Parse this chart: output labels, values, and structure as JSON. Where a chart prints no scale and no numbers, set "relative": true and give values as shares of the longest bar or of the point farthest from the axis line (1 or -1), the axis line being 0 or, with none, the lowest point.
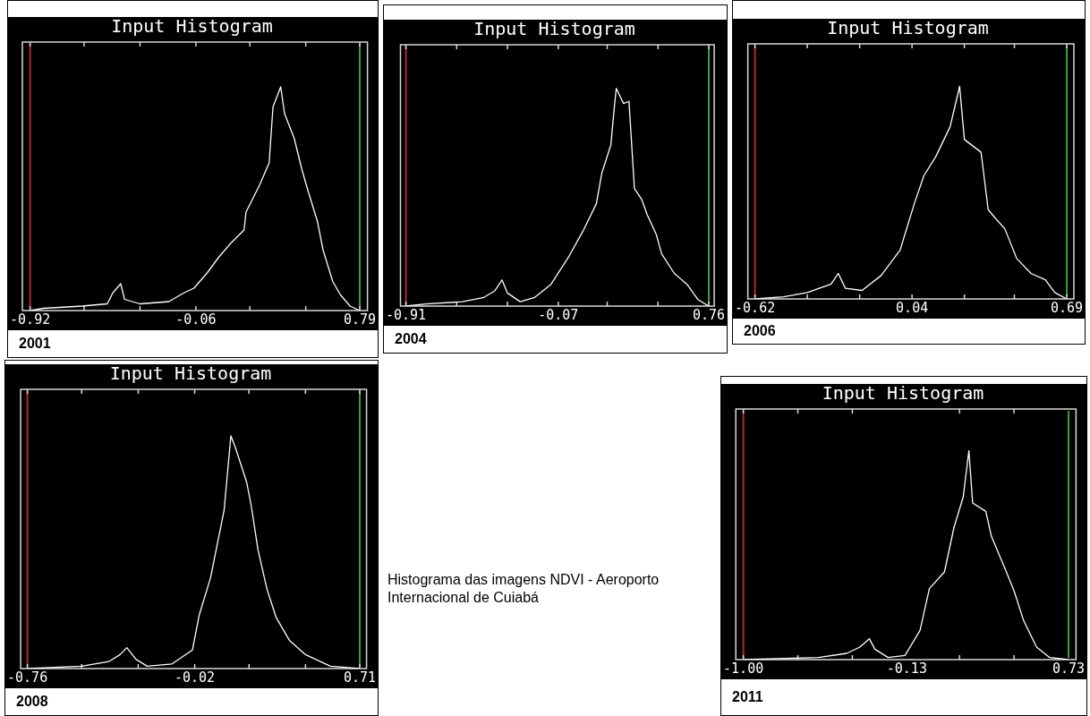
{
  "chart_data": [
    {
      "type": "line",
      "title": "Input Histogram",
      "relative": true,
      "marker": "none",
      "line_style": "solid",
      "color": "#ffffff",
      "x": [
        -0.92,
        -0.85,
        -0.65,
        -0.52,
        -0.49,
        -0.45,
        -0.43,
        -0.35,
        -0.2,
        -0.12,
        -0.07,
        0.0,
        0.06,
        0.12,
        0.19,
        0.2,
        0.27,
        0.32,
        0.34,
        0.38,
        0.4,
        0.45,
        0.49,
        0.52,
        0.57,
        0.6,
        0.65,
        0.69,
        0.74,
        0.79
      ],
      "values": [
        0,
        0.01,
        0.02,
        0.03,
        0.08,
        0.12,
        0.05,
        0.03,
        0.04,
        0.08,
        0.1,
        0.17,
        0.24,
        0.3,
        0.36,
        0.44,
        0.56,
        0.66,
        0.91,
        1.0,
        0.88,
        0.77,
        0.63,
        0.54,
        0.4,
        0.27,
        0.13,
        0.07,
        0.02,
        0
      ],
      "xlim": [
        -0.96,
        0.83
      ],
      "xticks": [
        -0.92,
        {
          "value": -0.64,
          "label": null
        },
        {
          "value": -0.35,
          "label": null
        },
        -0.06,
        {
          "value": 0.22,
          "label": null
        },
        {
          "value": 0.51,
          "label": null
        },
        0.79
      ],
      "ref_lines": [
        {
          "axis": "x",
          "value": -0.92,
          "color": "#b02a2a"
        },
        {
          "axis": "x",
          "value": 0.79,
          "color": "#3aa03a"
        }
      ],
      "annotations": [
        "2001"
      ]
    },
    {
      "type": "line",
      "title": "Input Histogram",
      "relative": true,
      "marker": "none",
      "line_style": "solid",
      "color": "#ffffff",
      "x": [
        -0.91,
        -0.8,
        -0.6,
        -0.48,
        -0.42,
        -0.38,
        -0.35,
        -0.28,
        -0.2,
        -0.11,
        -0.01,
        0.07,
        0.14,
        0.17,
        0.22,
        0.24,
        0.25,
        0.29,
        0.32,
        0.35,
        0.39,
        0.42,
        0.47,
        0.5,
        0.57,
        0.64,
        0.7,
        0.76
      ],
      "values": [
        0,
        0.01,
        0.02,
        0.04,
        0.07,
        0.12,
        0.06,
        0.02,
        0.04,
        0.1,
        0.23,
        0.35,
        0.47,
        0.61,
        0.74,
        0.92,
        1.0,
        0.93,
        0.94,
        0.54,
        0.49,
        0.42,
        0.33,
        0.24,
        0.15,
        0.1,
        0.03,
        0
      ],
      "xlim": [
        -0.94,
        0.79
      ],
      "xticks": [
        -0.91,
        {
          "value": -0.63,
          "label": null
        },
        {
          "value": -0.35,
          "label": null
        },
        -0.07,
        {
          "value": 0.2,
          "label": null
        },
        {
          "value": 0.48,
          "label": null
        },
        0.76
      ],
      "ref_lines": [
        {
          "axis": "x",
          "value": -0.91,
          "color": "#b02a2a"
        },
        {
          "axis": "x",
          "value": 0.76,
          "color": "#3aa03a"
        }
      ],
      "annotations": [
        "2004"
      ]
    },
    {
      "type": "line",
      "title": "Input Histogram",
      "relative": true,
      "marker": "none",
      "line_style": "solid",
      "color": "#ffffff",
      "x": [
        -0.62,
        -0.5,
        -0.4,
        -0.3,
        -0.27,
        -0.24,
        -0.17,
        -0.09,
        -0.01,
        0.05,
        0.09,
        0.14,
        0.2,
        0.24,
        0.26,
        0.33,
        0.36,
        0.39,
        0.43,
        0.48,
        0.54,
        0.6,
        0.64,
        0.69
      ],
      "values": [
        0,
        0.01,
        0.03,
        0.07,
        0.12,
        0.05,
        0.04,
        0.11,
        0.23,
        0.45,
        0.58,
        0.67,
        0.81,
        1.0,
        0.75,
        0.69,
        0.42,
        0.38,
        0.33,
        0.19,
        0.12,
        0.09,
        0.03,
        0
      ],
      "xlim": [
        -0.65,
        0.72
      ],
      "xticks": [
        -0.62,
        {
          "value": -0.4,
          "label": null
        },
        {
          "value": -0.18,
          "label": null
        },
        0.04,
        {
          "value": 0.26,
          "label": null
        },
        {
          "value": 0.47,
          "label": null
        },
        0.69
      ],
      "ref_lines": [
        {
          "axis": "x",
          "value": -0.62,
          "color": "#b02a2a"
        },
        {
          "axis": "x",
          "value": 0.69,
          "color": "#3aa03a"
        }
      ],
      "annotations": [
        "2006"
      ]
    },
    {
      "type": "line",
      "title": "Input Histogram",
      "relative": true,
      "marker": "none",
      "line_style": "solid",
      "color": "#ffffff",
      "x": [
        -0.76,
        -0.52,
        -0.4,
        -0.35,
        -0.32,
        -0.28,
        -0.23,
        -0.12,
        -0.03,
        0.0,
        0.05,
        0.11,
        0.14,
        0.16,
        0.21,
        0.23,
        0.26,
        0.3,
        0.34,
        0.4,
        0.47,
        0.58,
        0.71
      ],
      "values": [
        0,
        0.01,
        0.03,
        0.06,
        0.09,
        0.04,
        0.01,
        0.02,
        0.08,
        0.23,
        0.39,
        0.68,
        1.0,
        0.95,
        0.8,
        0.7,
        0.51,
        0.34,
        0.22,
        0.12,
        0.06,
        0.01,
        0
      ],
      "xlim": [
        -0.79,
        0.74
      ],
      "xticks": [
        -0.76,
        {
          "value": -0.52,
          "label": null
        },
        {
          "value": -0.27,
          "label": null
        },
        -0.02,
        {
          "value": 0.22,
          "label": null
        },
        {
          "value": 0.47,
          "label": null
        },
        0.71
      ],
      "ref_lines": [
        {
          "axis": "x",
          "value": -0.76,
          "color": "#b02a2a"
        },
        {
          "axis": "x",
          "value": 0.71,
          "color": "#3aa03a"
        }
      ],
      "annotations": [
        "2008"
      ]
    },
    {
      "type": "other",
      "title": "Histograma das imagens NDVI - Aeroporto Internacional de Cuiabá"
    },
    {
      "type": "line",
      "title": "Input Histogram",
      "relative": true,
      "marker": "none",
      "line_style": "solid",
      "color": "#ffffff",
      "x": [
        -1.0,
        -0.6,
        -0.45,
        -0.38,
        -0.33,
        -0.3,
        -0.23,
        -0.14,
        -0.06,
        -0.01,
        0.07,
        0.12,
        0.17,
        0.2,
        0.22,
        0.29,
        0.32,
        0.39,
        0.44,
        0.49,
        0.56,
        0.63,
        0.73
      ],
      "values": [
        0,
        0.01,
        0.03,
        0.06,
        0.1,
        0.05,
        0.01,
        0.02,
        0.14,
        0.34,
        0.42,
        0.63,
        0.78,
        1.0,
        0.75,
        0.71,
        0.59,
        0.44,
        0.33,
        0.19,
        0.06,
        0.01,
        0
      ],
      "xlim": [
        -1.04,
        0.77
      ],
      "xticks": [
        {
          "value": -1.0,
          "label": "-1.00"
        },
        {
          "value": -0.71,
          "label": null
        },
        {
          "value": -0.42,
          "label": null
        },
        -0.13,
        {
          "value": 0.15,
          "label": null
        },
        {
          "value": 0.44,
          "label": null
        },
        0.73
      ],
      "ref_lines": [
        {
          "axis": "x",
          "value": -1.0,
          "color": "#b02a2a"
        },
        {
          "axis": "x",
          "value": 0.73,
          "color": "#3aa03a"
        }
      ],
      "annotations": [
        "2011"
      ]
    }
  ]
}
